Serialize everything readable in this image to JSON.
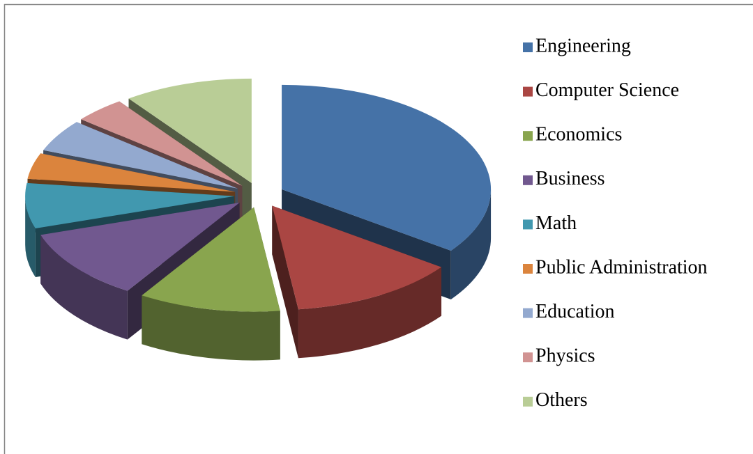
{
  "chart_data": {
    "type": "pie",
    "categories": [
      "Engineering",
      "Computer Science",
      "Economics",
      "Business",
      "Math",
      "Public Administration",
      "Education",
      "Physics",
      "Others"
    ],
    "values": [
      35,
      13,
      11,
      11,
      7,
      4,
      5,
      4,
      10
    ],
    "colors": [
      "#4572a7",
      "#aa4643",
      "#89a54e",
      "#71588f",
      "#4198af",
      "#db843d",
      "#93a9cf",
      "#d19392",
      "#b9cd96"
    ],
    "legend": "right"
  }
}
